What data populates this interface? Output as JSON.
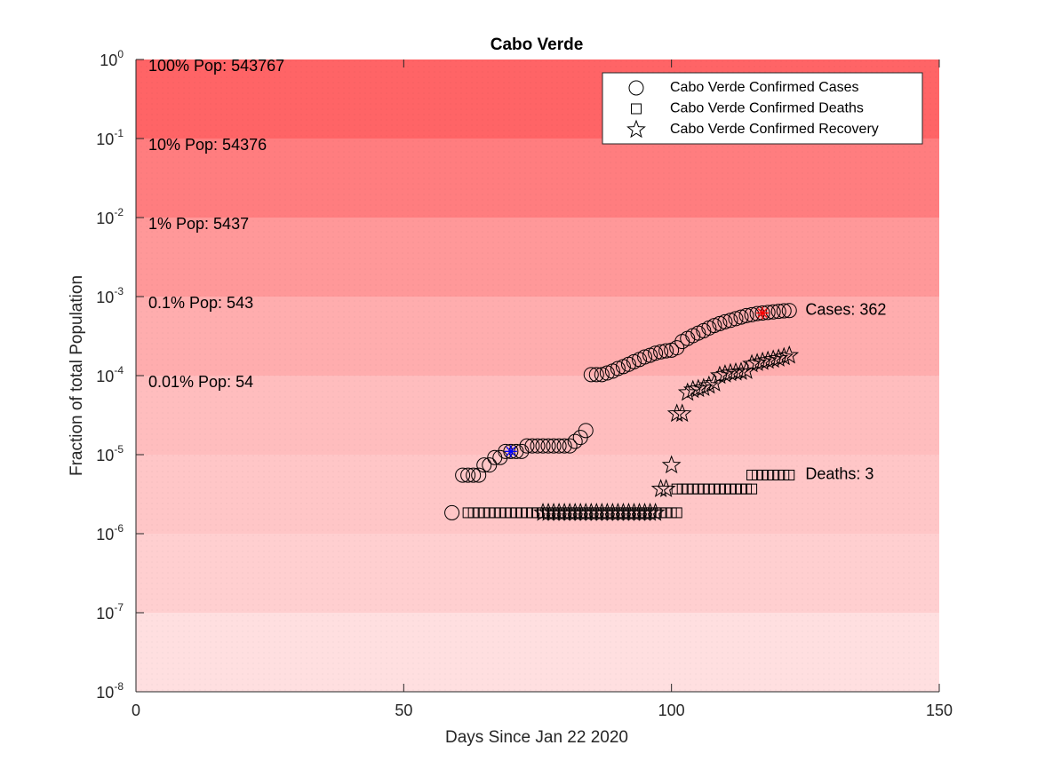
{
  "chart_data": {
    "type": "scatter",
    "title": "Cabo Verde",
    "xlabel": "Days Since Jan 22 2020",
    "ylabel": "Fraction of total Population",
    "xlim": [
      0,
      150
    ],
    "ylim": [
      1e-08,
      1
    ],
    "yscale": "log",
    "xticks": [
      "0",
      "50",
      "100",
      "150"
    ],
    "yticks": [
      {
        "base": "10",
        "exp": "0",
        "value": 1
      },
      {
        "base": "10",
        "exp": "-1",
        "value": 0.1
      },
      {
        "base": "10",
        "exp": "-2",
        "value": 0.01
      },
      {
        "base": "10",
        "exp": "-3",
        "value": 0.001
      },
      {
        "base": "10",
        "exp": "-4",
        "value": 0.0001
      },
      {
        "base": "10",
        "exp": "-5",
        "value": 1e-05
      },
      {
        "base": "10",
        "exp": "-6",
        "value": 1e-06
      },
      {
        "base": "10",
        "exp": "-7",
        "value": 1e-07
      },
      {
        "base": "10",
        "exp": "-8",
        "value": 1e-08
      }
    ],
    "population_bands": [
      {
        "label": "100% Pop: 543767",
        "low": 0.1,
        "high": 1,
        "color": "#ff6466"
      },
      {
        "label": "10% Pop: 54376",
        "low": 0.01,
        "high": 0.1,
        "color": "#ff7d7f"
      },
      {
        "label": "1% Pop: 5437",
        "low": 0.001,
        "high": 0.01,
        "color": "#ff9899"
      },
      {
        "label": "0.1% Pop: 543",
        "low": 0.0001,
        "high": 0.001,
        "color": "#ffadae"
      },
      {
        "label": "0.01% Pop: 54",
        "low": 1e-05,
        "high": 0.0001,
        "color": "#ffbdbe"
      },
      {
        "label": "",
        "low": 1e-06,
        "high": 1e-05,
        "color": "#ffc6c7"
      },
      {
        "label": "",
        "low": 1e-07,
        "high": 1e-06,
        "color": "#ffcfd0"
      },
      {
        "label": "",
        "low": 1e-08,
        "high": 1e-07,
        "color": "#ffdfe0"
      }
    ],
    "legend": {
      "position": "top-right",
      "entries": [
        {
          "marker": "circle",
          "label": "Cabo Verde Confirmed Cases"
        },
        {
          "marker": "square",
          "label": "Cabo Verde Confirmed Deaths"
        },
        {
          "marker": "star",
          "label": "Cabo Verde Confirmed Recovery"
        }
      ]
    },
    "series": [
      {
        "name": "Cabo Verde Confirmed Cases",
        "marker": "circle",
        "points": [
          [
            59,
            1.84e-06
          ],
          [
            61,
            5.5e-06
          ],
          [
            62,
            5.5e-06
          ],
          [
            63,
            5.5e-06
          ],
          [
            64,
            5.5e-06
          ],
          [
            65,
            7.4e-06
          ],
          [
            66,
            7.4e-06
          ],
          [
            67,
            9.2e-06
          ],
          [
            68,
            9.2e-06
          ],
          [
            69,
            1.1e-05
          ],
          [
            70,
            1.1e-05
          ],
          [
            71,
            1.1e-05
          ],
          [
            72,
            1.1e-05
          ],
          [
            73,
            1.29e-05
          ],
          [
            74,
            1.29e-05
          ],
          [
            75,
            1.29e-05
          ],
          [
            76,
            1.29e-05
          ],
          [
            77,
            1.29e-05
          ],
          [
            78,
            1.29e-05
          ],
          [
            79,
            1.29e-05
          ],
          [
            80,
            1.29e-05
          ],
          [
            81,
            1.29e-05
          ],
          [
            82,
            1.47e-05
          ],
          [
            83,
            1.65e-05
          ],
          [
            84,
            2.02e-05
          ],
          [
            85,
            0.000103
          ],
          [
            86,
            0.000103
          ],
          [
            87,
            0.000103
          ],
          [
            88,
            0.000108
          ],
          [
            89,
            0.000114
          ],
          [
            90,
            0.000123
          ],
          [
            91,
            0.00013
          ],
          [
            92,
            0.000139
          ],
          [
            93,
            0.00015
          ],
          [
            94,
            0.00016
          ],
          [
            95,
            0.000172
          ],
          [
            96,
            0.000181
          ],
          [
            97,
            0.000192
          ],
          [
            98,
            0.0002
          ],
          [
            99,
            0.000206
          ],
          [
            100,
            0.00021
          ],
          [
            101,
            0.000225
          ],
          [
            102,
            0.00027
          ],
          [
            103,
            0.000295
          ],
          [
            104,
            0.00032
          ],
          [
            105,
            0.000345
          ],
          [
            106,
            0.00037
          ],
          [
            107,
            0.0004
          ],
          [
            108,
            0.00043
          ],
          [
            109,
            0.000455
          ],
          [
            110,
            0.00048
          ],
          [
            111,
            0.0005
          ],
          [
            112,
            0.000525
          ],
          [
            113,
            0.00055
          ],
          [
            114,
            0.000575
          ],
          [
            115,
            0.00059
          ],
          [
            116,
            0.00061
          ],
          [
            117,
            0.00062
          ],
          [
            118,
            0.00063
          ],
          [
            119,
            0.00064
          ],
          [
            120,
            0.00065
          ],
          [
            121,
            0.00066
          ],
          [
            122,
            0.000666
          ]
        ]
      },
      {
        "name": "Cabo Verde Confirmed Deaths",
        "marker": "square",
        "points": [
          [
            62,
            1.84e-06
          ],
          [
            63,
            1.84e-06
          ],
          [
            64,
            1.84e-06
          ],
          [
            65,
            1.84e-06
          ],
          [
            66,
            1.84e-06
          ],
          [
            67,
            1.84e-06
          ],
          [
            68,
            1.84e-06
          ],
          [
            69,
            1.84e-06
          ],
          [
            70,
            1.84e-06
          ],
          [
            71,
            1.84e-06
          ],
          [
            72,
            1.84e-06
          ],
          [
            73,
            1.84e-06
          ],
          [
            74,
            1.84e-06
          ],
          [
            75,
            1.84e-06
          ],
          [
            76,
            1.84e-06
          ],
          [
            77,
            1.84e-06
          ],
          [
            78,
            1.84e-06
          ],
          [
            79,
            1.84e-06
          ],
          [
            80,
            1.84e-06
          ],
          [
            81,
            1.84e-06
          ],
          [
            82,
            1.84e-06
          ],
          [
            83,
            1.84e-06
          ],
          [
            84,
            1.84e-06
          ],
          [
            85,
            1.84e-06
          ],
          [
            86,
            1.84e-06
          ],
          [
            87,
            1.84e-06
          ],
          [
            88,
            1.84e-06
          ],
          [
            89,
            1.84e-06
          ],
          [
            90,
            1.84e-06
          ],
          [
            91,
            1.84e-06
          ],
          [
            92,
            1.84e-06
          ],
          [
            93,
            1.84e-06
          ],
          [
            94,
            1.84e-06
          ],
          [
            95,
            1.84e-06
          ],
          [
            96,
            1.84e-06
          ],
          [
            97,
            1.84e-06
          ],
          [
            98,
            1.84e-06
          ],
          [
            99,
            1.84e-06
          ],
          [
            100,
            1.84e-06
          ],
          [
            101,
            1.84e-06
          ],
          [
            101,
            3.68e-06
          ],
          [
            102,
            3.68e-06
          ],
          [
            103,
            3.68e-06
          ],
          [
            104,
            3.68e-06
          ],
          [
            105,
            3.68e-06
          ],
          [
            106,
            3.68e-06
          ],
          [
            107,
            3.68e-06
          ],
          [
            108,
            3.68e-06
          ],
          [
            109,
            3.68e-06
          ],
          [
            110,
            3.68e-06
          ],
          [
            111,
            3.68e-06
          ],
          [
            112,
            3.68e-06
          ],
          [
            113,
            3.68e-06
          ],
          [
            114,
            3.68e-06
          ],
          [
            115,
            3.68e-06
          ],
          [
            115,
            5.52e-06
          ],
          [
            116,
            5.52e-06
          ],
          [
            117,
            5.52e-06
          ],
          [
            118,
            5.52e-06
          ],
          [
            119,
            5.52e-06
          ],
          [
            120,
            5.52e-06
          ],
          [
            121,
            5.52e-06
          ],
          [
            122,
            5.52e-06
          ]
        ]
      },
      {
        "name": "Cabo Verde Confirmed Recovery",
        "marker": "star",
        "points": [
          [
            76,
            1.84e-06
          ],
          [
            77,
            1.84e-06
          ],
          [
            78,
            1.84e-06
          ],
          [
            79,
            1.84e-06
          ],
          [
            80,
            1.84e-06
          ],
          [
            81,
            1.84e-06
          ],
          [
            82,
            1.84e-06
          ],
          [
            83,
            1.84e-06
          ],
          [
            84,
            1.84e-06
          ],
          [
            85,
            1.84e-06
          ],
          [
            86,
            1.84e-06
          ],
          [
            87,
            1.84e-06
          ],
          [
            88,
            1.84e-06
          ],
          [
            89,
            1.84e-06
          ],
          [
            90,
            1.84e-06
          ],
          [
            91,
            1.84e-06
          ],
          [
            92,
            1.84e-06
          ],
          [
            93,
            1.84e-06
          ],
          [
            94,
            1.84e-06
          ],
          [
            95,
            1.84e-06
          ],
          [
            96,
            1.84e-06
          ],
          [
            97,
            1.84e-06
          ],
          [
            98,
            3.68e-06
          ],
          [
            99,
            3.68e-06
          ],
          [
            100,
            7.35e-06
          ],
          [
            101,
            3.3e-05
          ],
          [
            102,
            3.3e-05
          ],
          [
            103,
            6.1e-05
          ],
          [
            104,
            6.6e-05
          ],
          [
            105,
            6.8e-05
          ],
          [
            106,
            7e-05
          ],
          [
            107,
            7.5e-05
          ],
          [
            108,
            8e-05
          ],
          [
            109,
            0.0001
          ],
          [
            110,
            0.000104
          ],
          [
            111,
            0.000108
          ],
          [
            112,
            0.00011
          ],
          [
            113,
            0.000112
          ],
          [
            114,
            0.000115
          ],
          [
            115,
            0.00014
          ],
          [
            116,
            0.000145
          ],
          [
            117,
            0.00015
          ],
          [
            118,
            0.000155
          ],
          [
            119,
            0.00016
          ],
          [
            120,
            0.000165
          ],
          [
            121,
            0.000172
          ],
          [
            122,
            0.00018
          ]
        ]
      }
    ],
    "highlights": [
      {
        "x": 70,
        "y": 1.1e-05,
        "color": "#0000ff"
      },
      {
        "x": 117,
        "y": 0.00062,
        "color": "#ff0000"
      }
    ],
    "annotations": [
      {
        "text": "Cases: 362",
        "x": 125,
        "y": 0.000666
      },
      {
        "text": "Deaths: 3",
        "x": 125,
        "y": 5.52e-06
      }
    ]
  }
}
